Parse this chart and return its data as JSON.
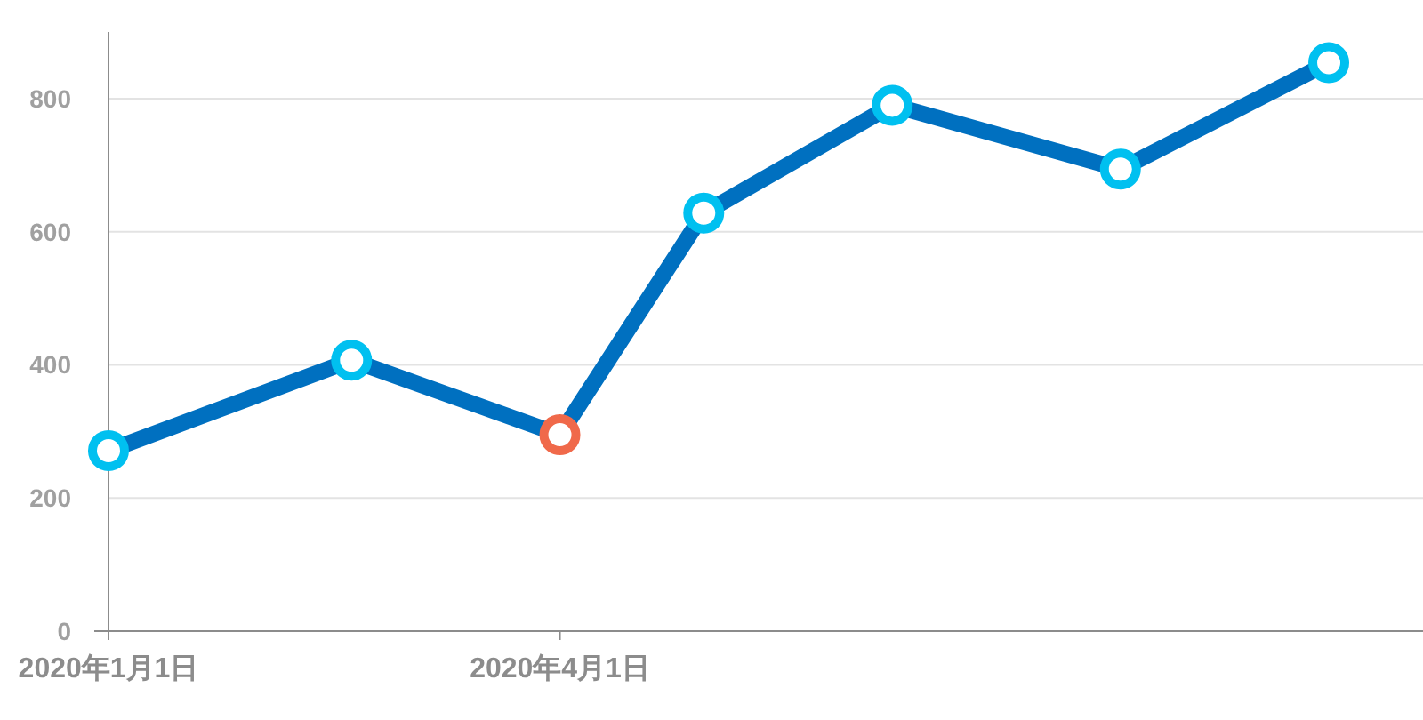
{
  "chart_data": {
    "type": "line",
    "x": [
      "2020-01-01",
      "2020-02-19",
      "2020-04-01",
      "2020-04-30",
      "2020-06-07",
      "2020-07-23",
      "2020-09-03"
    ],
    "series": [
      {
        "color": "#0070c0",
        "values": [
          271,
          407,
          295,
          628,
          790,
          694,
          854
        ],
        "colors": [
          "#00c0f0",
          "#00c0f0",
          "#f0694a",
          "#00c0f0",
          "#00c0f0",
          "#00c0f0",
          "#00c0f0"
        ]
      }
    ],
    "xlim": [
      "2020-01-01",
      "2020-09-22"
    ],
    "xticks": [
      {
        "value": "2020-01-01",
        "label": "2020年1月1日"
      },
      {
        "value": "2020-04-01",
        "label": "2020年4月1日"
      }
    ],
    "ylim": [
      0,
      900
    ],
    "yticks": [
      0,
      200,
      400,
      600,
      800
    ],
    "grid": "y",
    "marker": "circle",
    "line_style": "solid"
  }
}
